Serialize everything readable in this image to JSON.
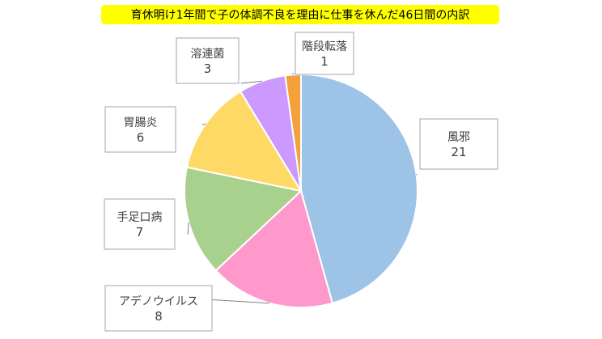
{
  "chart_data": {
    "type": "pie",
    "title": "育休明け1年間で子の体調不良を理由に仕事を休んだ46日間の内訳",
    "legend": "none",
    "slices": [
      {
        "name": "風邪",
        "value": 21,
        "color": "#9dc3e6"
      },
      {
        "name": "アデノウイルス",
        "value": 8,
        "color": "#ff99cc"
      },
      {
        "name": "手足口病",
        "value": 7,
        "color": "#a9d18e"
      },
      {
        "name": "胃腸炎",
        "value": 6,
        "color": "#ffd966"
      },
      {
        "name": "溶連菌",
        "value": 3,
        "color": "#cc99ff"
      },
      {
        "name": "階段転落",
        "value": 1,
        "color": "#f4a03c"
      }
    ]
  }
}
